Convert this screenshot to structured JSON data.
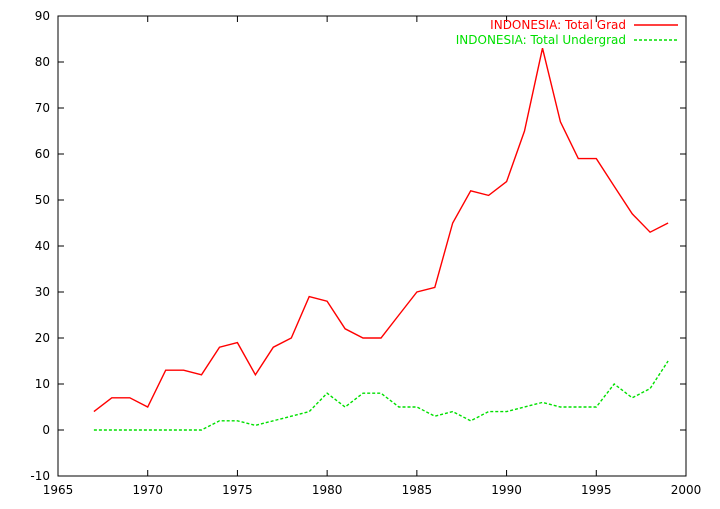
{
  "chart_data": {
    "type": "line",
    "xlim": [
      1965,
      2000
    ],
    "ylim": [
      -10,
      90
    ],
    "x_ticks": [
      1965,
      1970,
      1975,
      1980,
      1985,
      1990,
      1995,
      2000
    ],
    "y_ticks": [
      -10,
      0,
      10,
      20,
      30,
      40,
      50,
      60,
      70,
      80,
      90
    ],
    "grid": false,
    "legend_position": "top-right",
    "x": [
      1967,
      1968,
      1969,
      1970,
      1971,
      1972,
      1973,
      1974,
      1975,
      1976,
      1977,
      1978,
      1979,
      1980,
      1981,
      1982,
      1983,
      1984,
      1985,
      1986,
      1987,
      1988,
      1989,
      1990,
      1991,
      1992,
      1993,
      1994,
      1995,
      1996,
      1997,
      1998,
      1999
    ],
    "series": [
      {
        "name": "INDONESIA: Total Grad",
        "color": "#ff0000",
        "dash": "solid",
        "values": [
          4,
          7,
          7,
          5,
          13,
          13,
          12,
          18,
          19,
          12,
          18,
          20,
          29,
          28,
          22,
          20,
          20,
          25,
          30,
          31,
          45,
          52,
          51,
          54,
          65,
          83,
          67,
          59,
          59,
          53,
          47,
          43,
          45
        ]
      },
      {
        "name": "INDONESIA: Total Undergrad",
        "color": "#00e000",
        "dash": "dashed",
        "values": [
          0,
          0,
          0,
          0,
          0,
          0,
          0,
          2,
          2,
          1,
          2,
          3,
          4,
          8,
          5,
          8,
          8,
          5,
          5,
          3,
          4,
          2,
          4,
          4,
          5,
          6,
          5,
          5,
          5,
          10,
          7,
          9,
          15
        ]
      }
    ]
  }
}
